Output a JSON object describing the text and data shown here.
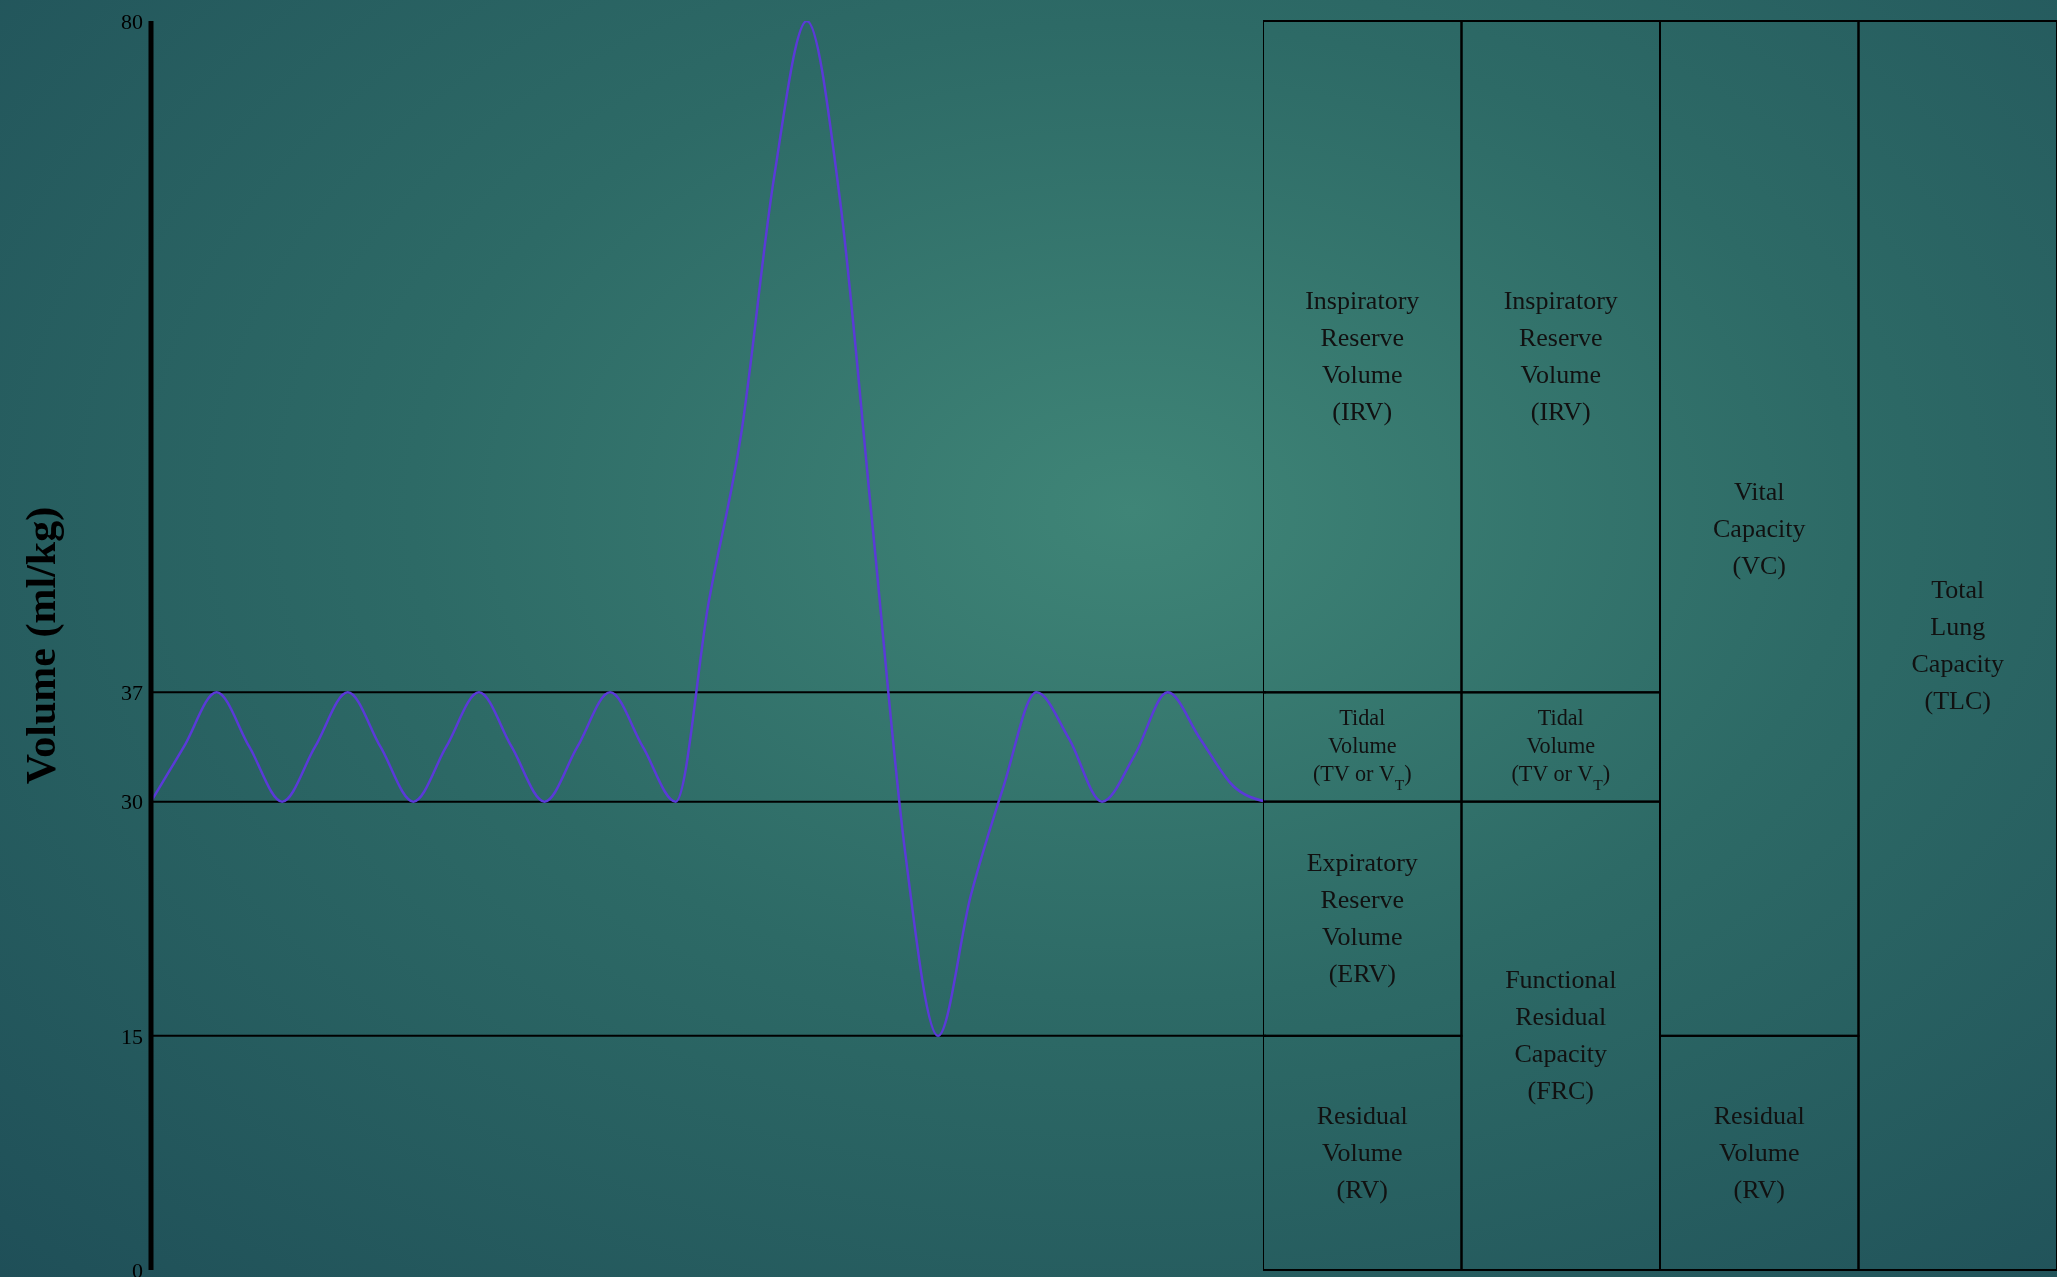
{
  "chart_data": {
    "type": "line",
    "ylabel": "Volume (ml/kg)",
    "categories": [
      null,
      null,
      null,
      null,
      null,
      null,
      null,
      null,
      null,
      null,
      null,
      null,
      null,
      null,
      null,
      null,
      null,
      null,
      null,
      null,
      null,
      null,
      null,
      null,
      null,
      null,
      null,
      null,
      null,
      null,
      null,
      null,
      null,
      null,
      null
    ],
    "series": [
      {
        "color": "#5a3ad8",
        "values": [
          30,
          33.5,
          37,
          33.5,
          30,
          33.5,
          37,
          33.5,
          30,
          33.5,
          37,
          33.5,
          30,
          33.5,
          37,
          33.5,
          30,
          42.7,
          53.6,
          70,
          80,
          68.7,
          47.7,
          26.7,
          15,
          24,
          31,
          37,
          34,
          30,
          33,
          37,
          34,
          31,
          30
        ]
      }
    ],
    "ylim": [
      0,
      80
    ],
    "yticks": [
      0,
      15,
      30,
      37,
      80
    ],
    "tick_labels": "y",
    "grid": false,
    "legend": false,
    "marker": "none",
    "line_style": "solid",
    "ref_lines": [
      {
        "axis": "y",
        "value": 37,
        "color": "#000000"
      },
      {
        "axis": "y",
        "value": 30,
        "color": "#000000"
      },
      {
        "axis": "y",
        "value": 15,
        "color": "#000000"
      }
    ],
    "annotations": [
      "Inspiratory Reserve Volume (IRV)",
      "Tidal Volume (TV or V$_{T}$)",
      "Expiratory Reserve Volume (ERV)",
      "Residual Volume (RV)",
      "Inspiratory Reserve Volume (IRV)",
      "Tidal Volume (TV or V$_{T}$)",
      "Functional Residual Capacity (FRC)",
      "Vital Capacity (VC)",
      "Residual Volume (RV)",
      "Total Lung Capacity (TLC)"
    ]
  }
}
